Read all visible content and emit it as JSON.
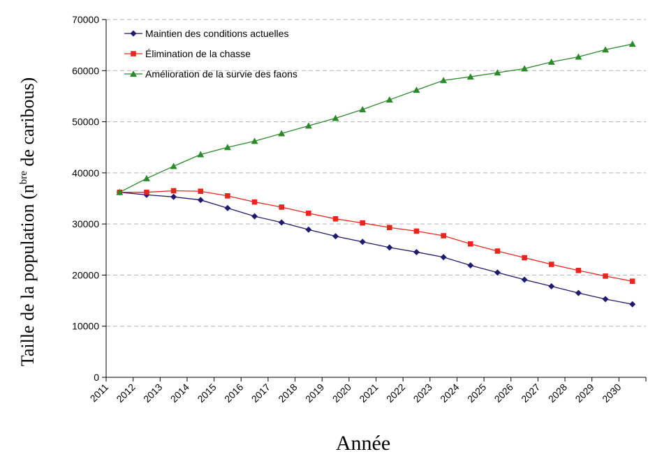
{
  "chart_data": {
    "type": "line",
    "x": [
      2011,
      2012,
      2013,
      2014,
      2015,
      2016,
      2017,
      2018,
      2019,
      2020,
      2021,
      2022,
      2023,
      2024,
      2025,
      2026,
      2027,
      2028,
      2029,
      2030
    ],
    "xticks": [
      "2011",
      "2012",
      "2013",
      "2014",
      "2015",
      "2016",
      "2017",
      "2018",
      "2019",
      "2020",
      "2021",
      "2022",
      "2023",
      "2024",
      "2025",
      "2026",
      "2027",
      "2028",
      "2029",
      "2030"
    ],
    "yticks": [
      "0",
      "10000",
      "20000",
      "30000",
      "40000",
      "50000",
      "60000",
      "70000"
    ],
    "ylim": [
      0,
      70000
    ],
    "xlabel": "Année",
    "ylabel": {
      "main": "Taille de la population (n",
      "superscript": "bre",
      "rest": " de caribous)"
    },
    "grid": "horizontal-dashed",
    "legend_position": "top-left",
    "series": [
      {
        "name": "Maintien des conditions actuelles",
        "color": "#1f1a6e",
        "marker": "diamond",
        "values": [
          36200,
          35700,
          35300,
          34700,
          33100,
          31500,
          30300,
          28900,
          27600,
          26500,
          25400,
          24500,
          23500,
          21900,
          20500,
          19100,
          17800,
          16500,
          15300,
          14300
        ]
      },
      {
        "name": "Élimination de la chasse",
        "color": "#e8261e",
        "marker": "square",
        "values": [
          36200,
          36200,
          36500,
          36400,
          35500,
          34300,
          33300,
          32100,
          31000,
          30200,
          29300,
          28600,
          27700,
          26100,
          24700,
          23400,
          22100,
          20900,
          19800,
          18800
        ]
      },
      {
        "name": "Amélioration de la survie des faons",
        "color": "#2a8a2a",
        "marker": "triangle",
        "values": [
          36200,
          38900,
          41300,
          43600,
          45000,
          46200,
          47700,
          49200,
          50700,
          52400,
          54300,
          56200,
          58100,
          58800,
          59600,
          60400,
          61700,
          62700,
          64100,
          65200
        ]
      }
    ]
  }
}
